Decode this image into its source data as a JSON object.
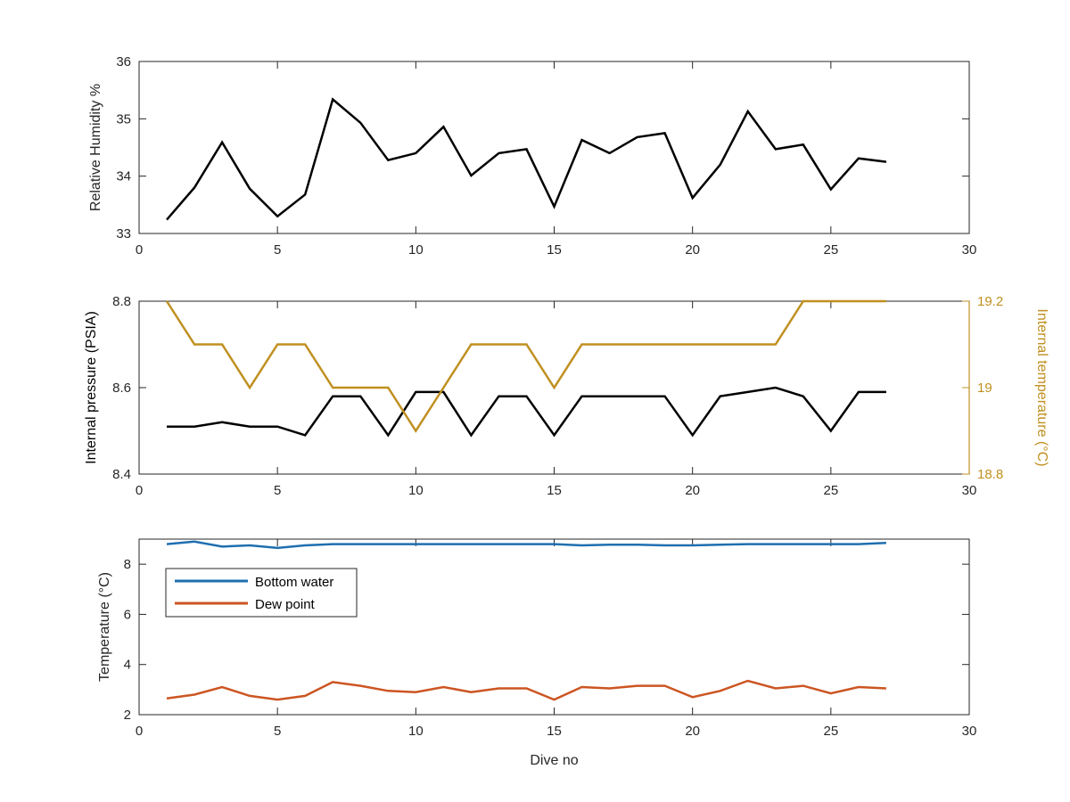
{
  "figure": {
    "xlabel": "Dive no"
  },
  "chart_data": [
    {
      "type": "line",
      "title": "",
      "xlabel": "",
      "ylabel": "Relative Humidity %",
      "xlim": [
        0,
        30
      ],
      "ylim": [
        33,
        36
      ],
      "xticks": [
        0,
        5,
        10,
        15,
        20,
        25,
        30
      ],
      "yticks": [
        33,
        34,
        35,
        36
      ],
      "grid": false,
      "x": [
        1,
        2,
        3,
        4,
        5,
        6,
        7,
        8,
        9,
        10,
        11,
        12,
        13,
        14,
        15,
        16,
        17,
        18,
        19,
        20,
        21,
        22,
        23,
        24,
        25,
        26,
        27
      ],
      "series": [
        {
          "color": "#000000",
          "values": [
            33.24,
            33.8,
            34.59,
            33.78,
            33.3,
            33.68,
            35.34,
            34.93,
            34.28,
            34.4,
            34.86,
            34.01,
            34.4,
            34.47,
            33.47,
            34.63,
            34.4,
            34.68,
            34.75,
            33.62,
            34.2,
            35.13,
            34.47,
            34.55,
            33.77,
            34.31,
            34.25
          ]
        }
      ]
    },
    {
      "type": "line",
      "title": "",
      "xlabel": "",
      "ylabel": "Internal pressure (PSIA)",
      "ylabel_right": "Internal temperature (°C)",
      "xlim": [
        0,
        30
      ],
      "ylim": [
        8.4,
        8.8
      ],
      "ylim_right": [
        18.8,
        19.2
      ],
      "xticks": [
        0,
        5,
        10,
        15,
        20,
        25,
        30
      ],
      "yticks": [
        "8.4",
        "8.6",
        "8.8"
      ],
      "yticks_right": [
        "18.8",
        "19",
        "19.2"
      ],
      "right_axis_color": "#C09020",
      "grid": false,
      "x": [
        1,
        2,
        3,
        4,
        5,
        6,
        7,
        8,
        9,
        10,
        11,
        12,
        13,
        14,
        15,
        16,
        17,
        18,
        19,
        20,
        21,
        22,
        23,
        24,
        25,
        26,
        27
      ],
      "series": [
        {
          "axis": "left",
          "color": "#000000",
          "values": [
            8.51,
            8.51,
            8.52,
            8.51,
            8.51,
            8.49,
            8.58,
            8.58,
            8.49,
            8.59,
            8.59,
            8.49,
            8.58,
            8.58,
            8.49,
            8.58,
            8.58,
            8.58,
            8.58,
            8.49,
            8.58,
            8.59,
            8.6,
            8.58,
            8.5,
            8.59,
            8.59
          ]
        },
        {
          "axis": "right",
          "color": "#C09020",
          "values": [
            19.2,
            19.1,
            19.1,
            19.0,
            19.1,
            19.1,
            19.0,
            19.0,
            19.0,
            18.9,
            19.0,
            19.1,
            19.1,
            19.1,
            19.0,
            19.1,
            19.1,
            19.1,
            19.1,
            19.1,
            19.1,
            19.1,
            19.1,
            19.2,
            19.2,
            19.2,
            19.2
          ]
        }
      ]
    },
    {
      "type": "line",
      "title": "",
      "xlabel": "Dive no",
      "ylabel": "Temperature (°C)",
      "xlim": [
        0,
        30
      ],
      "ylim": [
        2,
        9
      ],
      "xticks": [
        0,
        5,
        10,
        15,
        20,
        25,
        30
      ],
      "yticks": [
        2,
        4,
        6,
        8
      ],
      "grid": false,
      "legend_position": "upper-left",
      "x": [
        1,
        2,
        3,
        4,
        5,
        6,
        7,
        8,
        9,
        10,
        11,
        12,
        13,
        14,
        15,
        16,
        17,
        18,
        19,
        20,
        21,
        22,
        23,
        24,
        25,
        26,
        27
      ],
      "series": [
        {
          "name": "Bottom water",
          "color": "#1F6FB0",
          "values": [
            8.8,
            8.9,
            8.7,
            8.75,
            8.65,
            8.75,
            8.8,
            8.8,
            8.8,
            8.8,
            8.8,
            8.8,
            8.8,
            8.8,
            8.8,
            8.75,
            8.78,
            8.78,
            8.75,
            8.75,
            8.78,
            8.8,
            8.8,
            8.8,
            8.8,
            8.8,
            8.85
          ]
        },
        {
          "name": "Dew point",
          "color": "#CC5522",
          "values": [
            2.65,
            2.8,
            3.1,
            2.75,
            2.6,
            2.75,
            3.3,
            3.15,
            2.95,
            2.9,
            3.1,
            2.9,
            3.05,
            3.05,
            2.6,
            3.1,
            3.05,
            3.15,
            3.15,
            2.7,
            2.95,
            3.35,
            3.05,
            3.15,
            2.85,
            3.1,
            3.05
          ]
        }
      ]
    }
  ]
}
